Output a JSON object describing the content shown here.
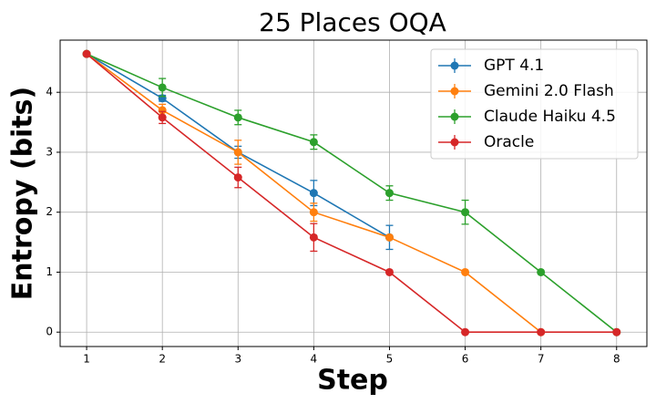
{
  "chart_data": {
    "type": "line",
    "title": "25 Places OQA",
    "xlabel": "Step",
    "ylabel": "Entropy (bits)",
    "x": [
      1,
      2,
      3,
      4,
      5,
      6,
      7,
      8
    ],
    "series": [
      {
        "name": "GPT 4.1",
        "color": "#1f77b4",
        "values": [
          4.64,
          3.9,
          3.0,
          2.32,
          1.58,
          null,
          null,
          null
        ],
        "errors": [
          null,
          0.05,
          0.1,
          0.21,
          0.2,
          null,
          null,
          null
        ]
      },
      {
        "name": "Gemini 2.0 Flash",
        "color": "#ff7f0e",
        "values": [
          4.64,
          3.7,
          3.0,
          2.0,
          1.58,
          1.0,
          0,
          null
        ],
        "errors": [
          null,
          0.1,
          0.2,
          0.15,
          null,
          null,
          null,
          null
        ]
      },
      {
        "name": "Claude Haiku 4.5",
        "color": "#2ca02c",
        "values": [
          4.64,
          4.08,
          3.58,
          3.17,
          2.32,
          2.0,
          1.0,
          0
        ],
        "errors": [
          null,
          0.15,
          0.12,
          0.12,
          0.12,
          0.2,
          null,
          null
        ]
      },
      {
        "name": "Oracle",
        "color": "#d62728",
        "values": [
          4.64,
          3.58,
          2.58,
          1.58,
          1.0,
          0,
          0,
          0
        ],
        "errors": [
          null,
          0.1,
          0.17,
          0.23,
          null,
          null,
          null,
          null
        ]
      }
    ],
    "xlim": [
      0.65,
      8.4
    ],
    "ylim": [
      -0.24,
      4.87
    ],
    "xticks": [
      1,
      2,
      3,
      4,
      5,
      6,
      7,
      8
    ],
    "yticks": [
      0,
      1,
      2,
      3,
      4
    ],
    "grid": true,
    "legend": "upper right"
  }
}
